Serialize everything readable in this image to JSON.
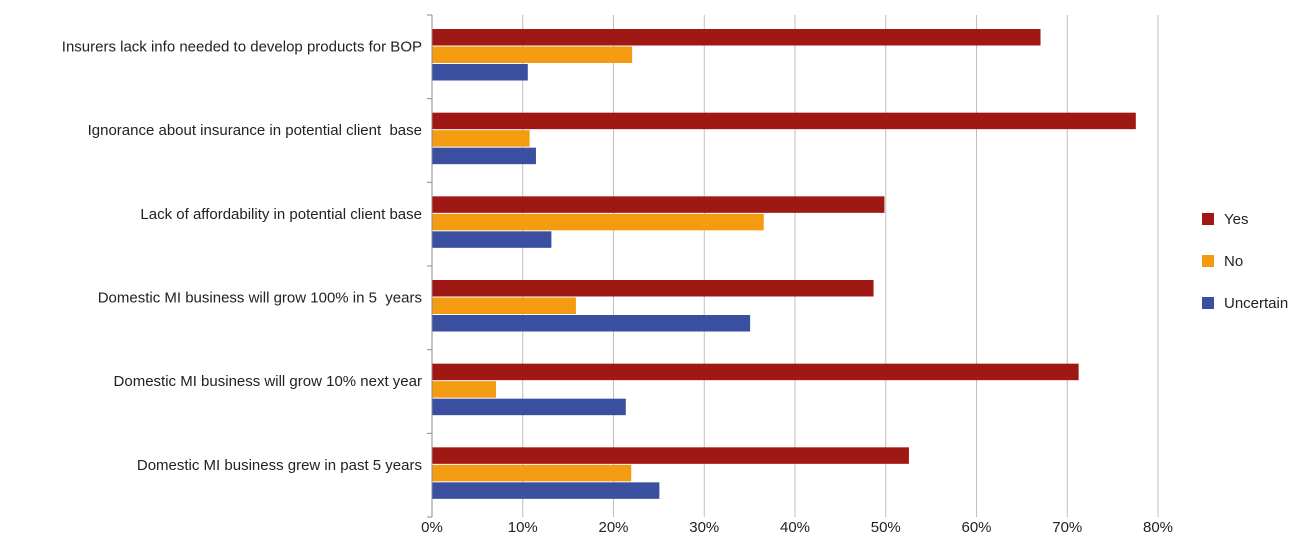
{
  "chart_data": {
    "type": "bar",
    "orientation": "horizontal",
    "categories": [
      "Insurers lack info needed to develop products for BOP",
      "Ignorance about insurance in potential client  base",
      "Lack of affordability in potential client base",
      "Domestic MI business will grow 100% in 5  years",
      "Domestic MI business will grow 10% next year",
      "Domestic MI business grew in past 5 years"
    ],
    "series": [
      {
        "name": "Yes",
        "color": "#a01814",
        "values": [
          67,
          77.5,
          49.8,
          48.6,
          71.2,
          52.5
        ]
      },
      {
        "name": "No",
        "color": "#f39c12",
        "values": [
          22,
          10.7,
          36.5,
          15.8,
          7,
          21.9
        ]
      },
      {
        "name": "Uncertain",
        "color": "#3a4fa0",
        "values": [
          10.5,
          11.4,
          13.1,
          35,
          21.3,
          25
        ]
      }
    ],
    "xlim": [
      0,
      80
    ],
    "xticks": [
      "0%",
      "10%",
      "20%",
      "30%",
      "40%",
      "50%",
      "60%",
      "70%",
      "80%"
    ],
    "grid": true,
    "legend_position": "right"
  }
}
